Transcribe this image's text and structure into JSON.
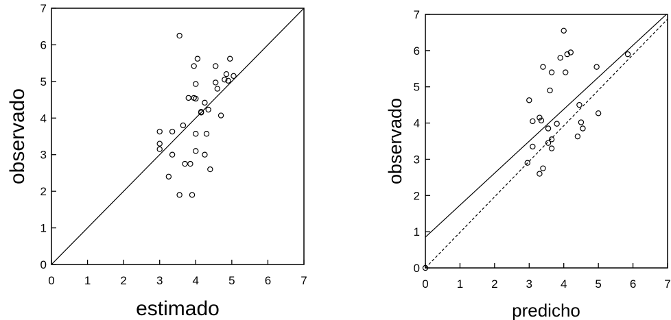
{
  "chart_data": [
    {
      "type": "scatter",
      "xlabel": "estimado",
      "ylabel": "observado",
      "xlim": [
        0,
        7
      ],
      "ylim": [
        0,
        7
      ],
      "xticks": [
        0,
        1,
        2,
        3,
        4,
        5,
        6,
        7
      ],
      "yticks": [
        0,
        1,
        2,
        3,
        4,
        5,
        6,
        7
      ],
      "grid": false,
      "points": [
        [
          3.55,
          6.25
        ],
        [
          4.05,
          5.62
        ],
        [
          4.95,
          5.62
        ],
        [
          3.95,
          5.42
        ],
        [
          4.55,
          5.42
        ],
        [
          4.85,
          5.2
        ],
        [
          5.05,
          5.15
        ],
        [
          4.8,
          5.05
        ],
        [
          4.9,
          5.02
        ],
        [
          4.55,
          4.97
        ],
        [
          4.0,
          4.93
        ],
        [
          4.6,
          4.8
        ],
        [
          3.8,
          4.55
        ],
        [
          3.95,
          4.55
        ],
        [
          4.0,
          4.53
        ],
        [
          4.25,
          4.42
        ],
        [
          4.35,
          4.23
        ],
        [
          4.15,
          4.17
        ],
        [
          4.15,
          4.15
        ],
        [
          4.7,
          4.07
        ],
        [
          3.65,
          3.8
        ],
        [
          3.0,
          3.63
        ],
        [
          3.35,
          3.63
        ],
        [
          4.0,
          3.57
        ],
        [
          4.3,
          3.57
        ],
        [
          3.0,
          3.3
        ],
        [
          3.0,
          3.15
        ],
        [
          4.0,
          3.1
        ],
        [
          3.35,
          3.0
        ],
        [
          4.25,
          3.0
        ],
        [
          3.7,
          2.75
        ],
        [
          3.85,
          2.75
        ],
        [
          4.4,
          2.6
        ],
        [
          3.25,
          2.4
        ],
        [
          3.55,
          1.9
        ],
        [
          3.9,
          1.9
        ]
      ],
      "lines": [
        {
          "style": "solid",
          "from": [
            0,
            0
          ],
          "to": [
            7,
            7
          ]
        }
      ]
    },
    {
      "type": "scatter",
      "xlabel": "predicho",
      "ylabel": "observado",
      "xlim": [
        0,
        7
      ],
      "ylim": [
        0,
        7
      ],
      "xticks": [
        0,
        1,
        2,
        3,
        4,
        5,
        6,
        7
      ],
      "yticks": [
        0,
        1,
        2,
        3,
        4,
        5,
        6,
        7
      ],
      "grid": false,
      "points": [
        [
          0.0,
          0.0
        ],
        [
          4.0,
          6.55
        ],
        [
          4.2,
          5.95
        ],
        [
          4.1,
          5.9
        ],
        [
          3.9,
          5.8
        ],
        [
          5.85,
          5.9
        ],
        [
          3.4,
          5.55
        ],
        [
          4.95,
          5.55
        ],
        [
          3.65,
          5.4
        ],
        [
          4.05,
          5.4
        ],
        [
          3.6,
          4.9
        ],
        [
          3.0,
          4.63
        ],
        [
          4.45,
          4.5
        ],
        [
          5.0,
          4.27
        ],
        [
          4.5,
          4.02
        ],
        [
          3.1,
          4.05
        ],
        [
          3.3,
          4.15
        ],
        [
          3.35,
          4.07
        ],
        [
          3.8,
          3.98
        ],
        [
          3.55,
          3.85
        ],
        [
          4.55,
          3.85
        ],
        [
          4.4,
          3.63
        ],
        [
          3.65,
          3.55
        ],
        [
          3.55,
          3.45
        ],
        [
          3.1,
          3.35
        ],
        [
          3.65,
          3.3
        ],
        [
          2.95,
          2.9
        ],
        [
          3.4,
          2.75
        ],
        [
          3.3,
          2.6
        ]
      ],
      "lines": [
        {
          "style": "solid",
          "from": [
            0,
            0.85
          ],
          "to": [
            7,
            7.03
          ]
        },
        {
          "style": "dashed",
          "from": [
            0,
            0
          ],
          "to": [
            7,
            6.87
          ]
        }
      ]
    }
  ]
}
